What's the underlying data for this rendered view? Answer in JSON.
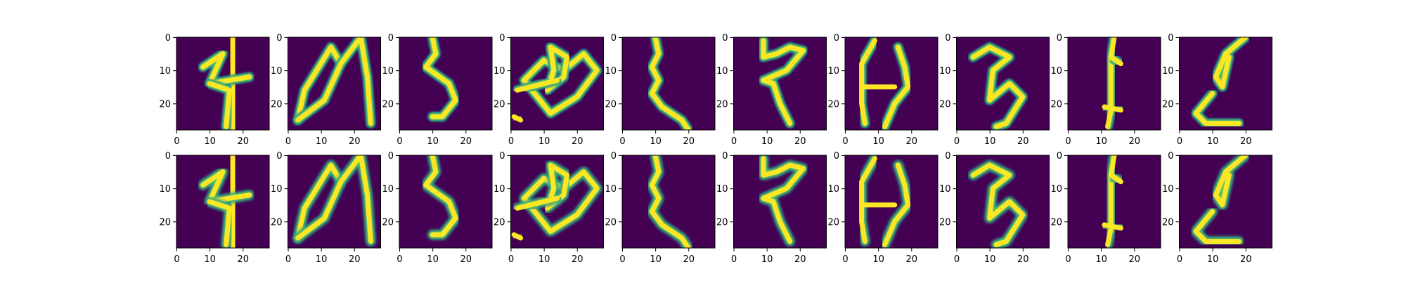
{
  "figure": {
    "background": "#ffffff",
    "rows": 2,
    "columns": 10,
    "colormap": "viridis",
    "colormap_stops": [
      "#440154",
      "#3b528b",
      "#21918c",
      "#5ec962",
      "#fde725"
    ]
  },
  "chart_data": {
    "type": "heatmap",
    "description_type": "image grid",
    "grid": {
      "rows": 2,
      "cols": 10
    },
    "image_size": [
      28,
      28
    ],
    "xlim": [
      0,
      27
    ],
    "ylim": [
      27,
      0
    ],
    "xticks": [
      0,
      10,
      20
    ],
    "yticks": [
      0,
      10,
      20
    ],
    "xtick_labels": [
      "0",
      "10",
      "20"
    ],
    "ytick_labels": [
      "0",
      "10",
      "20"
    ],
    "title": "",
    "xlabel": "",
    "ylabel": "",
    "panels": [
      {
        "row": 0,
        "col": 0,
        "glyph": "4-like",
        "strokes": [
          [
            [
              17,
              0
            ],
            [
              17,
              28
            ]
          ],
          [
            [
              8,
              9
            ],
            [
              14,
              5
            ],
            [
              10,
              14
            ],
            [
              22,
              12
            ]
          ],
          [
            [
              10,
              14
            ],
            [
              16,
              16
            ],
            [
              15,
              27
            ]
          ]
        ]
      },
      {
        "row": 0,
        "col": 1,
        "glyph": "M-like",
        "strokes": [
          [
            [
              3,
              25
            ],
            [
              5,
              16
            ],
            [
              13,
              3
            ],
            [
              16,
              8
            ]
          ],
          [
            [
              3,
              25
            ],
            [
              11,
              19
            ],
            [
              16,
              8
            ],
            [
              22,
              0
            ],
            [
              24,
              12
            ],
            [
              25,
              26
            ]
          ]
        ]
      },
      {
        "row": 0,
        "col": 2,
        "glyph": "hook",
        "strokes": [
          [
            [
              10,
              0
            ],
            [
              11,
              5
            ],
            [
              8,
              9
            ],
            [
              15,
              14
            ],
            [
              17,
              19
            ],
            [
              13,
              24
            ],
            [
              10,
              24
            ]
          ]
        ]
      },
      {
        "row": 0,
        "col": 3,
        "glyph": "heart loops",
        "strokes": [
          [
            [
              12,
              23
            ],
            [
              4,
              13
            ],
            [
              10,
              7
            ],
            [
              16,
              10
            ],
            [
              22,
              5
            ],
            [
              26,
              10
            ],
            [
              20,
              18
            ],
            [
              12,
              23
            ]
          ],
          [
            [
              12,
              3
            ],
            [
              17,
              6
            ],
            [
              16,
              12
            ],
            [
              11,
              16
            ],
            [
              13,
              10
            ],
            [
              12,
              3
            ]
          ],
          [
            [
              2,
              16
            ],
            [
              14,
              13
            ]
          ],
          [
            [
              1,
              24
            ],
            [
              3,
              25
            ]
          ]
        ]
      },
      {
        "row": 0,
        "col": 4,
        "glyph": "zigzag",
        "strokes": [
          [
            [
              10,
              0
            ],
            [
              11,
              5
            ],
            [
              9,
              9
            ],
            [
              11,
              13
            ],
            [
              9,
              17
            ],
            [
              12,
              21
            ],
            [
              18,
              25
            ],
            [
              20,
              28
            ]
          ]
        ]
      },
      {
        "row": 0,
        "col": 5,
        "glyph": "S-flag",
        "strokes": [
          [
            [
              9,
              1
            ],
            [
              9,
              6
            ],
            [
              13,
              5
            ],
            [
              17,
              3
            ],
            [
              21,
              4
            ],
            [
              16,
              10
            ],
            [
              9,
              13
            ],
            [
              12,
              14
            ],
            [
              14,
              20
            ],
            [
              17,
              26
            ]
          ]
        ]
      },
      {
        "row": 0,
        "col": 6,
        "glyph": "H-like",
        "strokes": [
          [
            [
              9,
              1
            ],
            [
              5,
              8
            ],
            [
              5,
              20
            ],
            [
              6,
              26
            ]
          ],
          [
            [
              16,
              3
            ],
            [
              18,
              9
            ],
            [
              19,
              15
            ],
            [
              15,
              20
            ],
            [
              12,
              27
            ]
          ],
          [
            [
              5,
              15
            ],
            [
              15,
              15
            ]
          ]
        ]
      },
      {
        "row": 0,
        "col": 7,
        "glyph": "5-like",
        "strokes": [
          [
            [
              5,
              6
            ],
            [
              10,
              3
            ],
            [
              16,
              6
            ],
            [
              11,
              10
            ],
            [
              10,
              19
            ],
            [
              16,
              14
            ],
            [
              20,
              18
            ],
            [
              15,
              26
            ],
            [
              12,
              27
            ]
          ]
        ]
      },
      {
        "row": 0,
        "col": 8,
        "glyph": "vertical",
        "strokes": [
          [
            [
              14,
              0
            ],
            [
              13,
              6
            ],
            [
              13,
              14
            ],
            [
              13,
              22
            ],
            [
              12,
              27
            ]
          ],
          [
            [
              13,
              6
            ],
            [
              16,
              8
            ]
          ],
          [
            [
              11,
              21
            ],
            [
              16,
              22
            ]
          ]
        ]
      },
      {
        "row": 0,
        "col": 9,
        "glyph": "cursive",
        "strokes": [
          [
            [
              20,
              0
            ],
            [
              14,
              5
            ],
            [
              11,
              12
            ],
            [
              13,
              15
            ],
            [
              15,
              6
            ]
          ],
          [
            [
              10,
              17
            ],
            [
              5,
              23
            ],
            [
              8,
              26
            ],
            [
              18,
              26
            ]
          ]
        ]
      },
      {
        "row": 1,
        "col": 0,
        "glyph": "4-like",
        "strokes": [
          [
            [
              17,
              0
            ],
            [
              17,
              28
            ]
          ],
          [
            [
              8,
              9
            ],
            [
              14,
              5
            ],
            [
              10,
              14
            ],
            [
              22,
              12
            ]
          ],
          [
            [
              10,
              14
            ],
            [
              16,
              16
            ],
            [
              15,
              27
            ]
          ]
        ]
      },
      {
        "row": 1,
        "col": 1,
        "glyph": "M-like",
        "strokes": [
          [
            [
              3,
              25
            ],
            [
              5,
              16
            ],
            [
              13,
              3
            ],
            [
              16,
              8
            ]
          ],
          [
            [
              3,
              25
            ],
            [
              11,
              19
            ],
            [
              16,
              8
            ],
            [
              22,
              0
            ],
            [
              24,
              12
            ],
            [
              25,
              26
            ]
          ]
        ]
      },
      {
        "row": 1,
        "col": 2,
        "glyph": "hook",
        "strokes": [
          [
            [
              10,
              0
            ],
            [
              11,
              5
            ],
            [
              8,
              9
            ],
            [
              15,
              14
            ],
            [
              17,
              19
            ],
            [
              13,
              24
            ],
            [
              10,
              24
            ]
          ]
        ]
      },
      {
        "row": 1,
        "col": 3,
        "glyph": "heart loops",
        "strokes": [
          [
            [
              12,
              23
            ],
            [
              4,
              13
            ],
            [
              10,
              7
            ],
            [
              16,
              10
            ],
            [
              22,
              5
            ],
            [
              26,
              10
            ],
            [
              20,
              18
            ],
            [
              12,
              23
            ]
          ],
          [
            [
              12,
              3
            ],
            [
              17,
              6
            ],
            [
              16,
              12
            ],
            [
              11,
              16
            ],
            [
              13,
              10
            ],
            [
              12,
              3
            ]
          ],
          [
            [
              2,
              16
            ],
            [
              14,
              13
            ]
          ],
          [
            [
              1,
              24
            ],
            [
              3,
              25
            ]
          ]
        ]
      },
      {
        "row": 1,
        "col": 4,
        "glyph": "zigzag",
        "strokes": [
          [
            [
              10,
              0
            ],
            [
              11,
              5
            ],
            [
              9,
              9
            ],
            [
              11,
              13
            ],
            [
              9,
              17
            ],
            [
              12,
              21
            ],
            [
              18,
              25
            ],
            [
              20,
              28
            ]
          ]
        ]
      },
      {
        "row": 1,
        "col": 5,
        "glyph": "S-flag",
        "strokes": [
          [
            [
              9,
              1
            ],
            [
              9,
              6
            ],
            [
              13,
              5
            ],
            [
              17,
              3
            ],
            [
              21,
              4
            ],
            [
              16,
              10
            ],
            [
              9,
              13
            ],
            [
              12,
              14
            ],
            [
              14,
              20
            ],
            [
              17,
              26
            ]
          ]
        ]
      },
      {
        "row": 1,
        "col": 6,
        "glyph": "H-like",
        "strokes": [
          [
            [
              9,
              1
            ],
            [
              5,
              8
            ],
            [
              5,
              20
            ],
            [
              6,
              26
            ]
          ],
          [
            [
              16,
              3
            ],
            [
              18,
              9
            ],
            [
              19,
              15
            ],
            [
              15,
              20
            ],
            [
              12,
              27
            ]
          ],
          [
            [
              5,
              15
            ],
            [
              15,
              15
            ]
          ]
        ]
      },
      {
        "row": 1,
        "col": 7,
        "glyph": "5-like",
        "strokes": [
          [
            [
              5,
              6
            ],
            [
              10,
              3
            ],
            [
              16,
              6
            ],
            [
              11,
              10
            ],
            [
              10,
              19
            ],
            [
              16,
              14
            ],
            [
              20,
              18
            ],
            [
              15,
              26
            ],
            [
              12,
              27
            ]
          ]
        ]
      },
      {
        "row": 1,
        "col": 8,
        "glyph": "vertical",
        "strokes": [
          [
            [
              14,
              0
            ],
            [
              13,
              6
            ],
            [
              13,
              14
            ],
            [
              13,
              22
            ],
            [
              12,
              27
            ]
          ],
          [
            [
              13,
              6
            ],
            [
              16,
              8
            ]
          ],
          [
            [
              11,
              21
            ],
            [
              16,
              22
            ]
          ]
        ]
      },
      {
        "row": 1,
        "col": 9,
        "glyph": "cursive",
        "strokes": [
          [
            [
              20,
              0
            ],
            [
              14,
              5
            ],
            [
              11,
              12
            ],
            [
              13,
              15
            ],
            [
              15,
              6
            ]
          ],
          [
            [
              10,
              17
            ],
            [
              5,
              23
            ],
            [
              8,
              26
            ],
            [
              18,
              26
            ]
          ]
        ]
      }
    ]
  }
}
